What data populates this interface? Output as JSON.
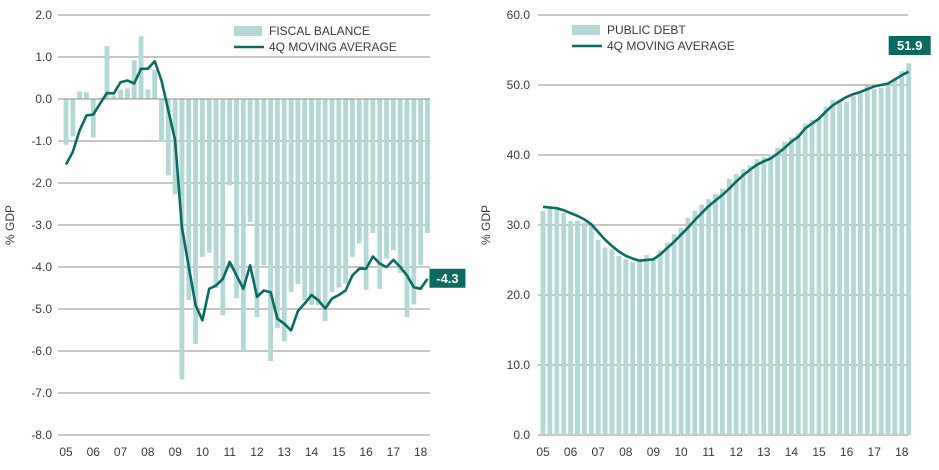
{
  "colors": {
    "bar": "#b3d8d6",
    "line": "#0a6b63",
    "label_bg": "#0a6b63",
    "grid": "#8c8c8c"
  },
  "chart_data": [
    {
      "type": "bar+line",
      "ylabel": "% GDP",
      "ylim": [
        -8,
        2
      ],
      "yticks": [
        "2.0",
        "1.0",
        "0.0",
        "-1.0",
        "-2.0",
        "-3.0",
        "-4.0",
        "-5.0",
        "-6.0",
        "-7.0",
        "-8.0"
      ],
      "ytick_values": [
        2,
        1,
        0,
        -1,
        -2,
        -3,
        -4,
        -5,
        -6,
        -7,
        -8
      ],
      "xticks": [
        "05",
        "06",
        "07",
        "08",
        "09",
        "10",
        "11",
        "12",
        "13",
        "14",
        "15",
        "16",
        "17",
        "18"
      ],
      "grid": true,
      "legend_placement": "top-right",
      "end_label": "-4.3",
      "series": [
        {
          "name": "FISCAL BALANCE",
          "kind": "bar",
          "values": [
            -1.09,
            -0.89,
            0.18,
            0.16,
            -0.92,
            0.03,
            1.26,
            0.09,
            0.22,
            0.25,
            0.92,
            1.49,
            0.23,
            0.7,
            -1.02,
            -1.82,
            -2.27,
            -6.68,
            -4.79,
            -5.83,
            -3.76,
            -3.66,
            -4.5,
            -5.15,
            -2.06,
            -4.75,
            -6.0,
            -2.93,
            -5.19,
            -3.96,
            -6.24,
            -5.45,
            -5.77,
            -4.6,
            -4.41,
            -4.79,
            -4.9,
            -4.91,
            -5.29,
            -4.6,
            -4.49,
            -4.4,
            -3.76,
            -3.44,
            -4.54,
            -3.19,
            -4.52,
            -3.8,
            -3.6,
            -4.14,
            -5.19,
            -4.89,
            -3.96,
            -3.19
          ]
        },
        {
          "name": "4Q MOVING AVERAGE",
          "kind": "line",
          "values": [
            -1.56,
            -1.26,
            -0.75,
            -0.39,
            -0.37,
            -0.11,
            0.14,
            0.13,
            0.4,
            0.44,
            0.37,
            0.72,
            0.72,
            0.9,
            0.44,
            -0.27,
            -0.98,
            -3.05,
            -4.0,
            -4.91,
            -5.27,
            -4.52,
            -4.44,
            -4.28,
            -3.88,
            -4.2,
            -4.52,
            -3.96,
            -4.71,
            -4.56,
            -4.6,
            -5.23,
            -5.35,
            -5.51,
            -5.05,
            -4.87,
            -4.67,
            -4.79,
            -4.99,
            -4.75,
            -4.67,
            -4.56,
            -4.2,
            -4.04,
            -4.04,
            -3.75,
            -3.92,
            -4.0,
            -3.83,
            -4.0,
            -4.2,
            -4.48,
            -4.52,
            -4.28
          ]
        }
      ]
    },
    {
      "type": "bar+line",
      "ylabel": "% GDP",
      "ylim": [
        0,
        60
      ],
      "yticks": [
        "60.0",
        "50.0",
        "40.0",
        "30.0",
        "20.0",
        "10.0",
        "0.0"
      ],
      "ytick_values": [
        60,
        50,
        40,
        30,
        20,
        10,
        0
      ],
      "xticks": [
        "05",
        "06",
        "07",
        "08",
        "09",
        "10",
        "11",
        "12",
        "13",
        "14",
        "15",
        "16",
        "17",
        "18"
      ],
      "grid": true,
      "legend_placement": "top-left",
      "end_label": "51.9",
      "series": [
        {
          "name": "PUBLIC DEBT",
          "kind": "bar",
          "values": [
            32.0,
            32.4,
            32.2,
            31.7,
            30.6,
            30.6,
            30.3,
            29.8,
            27.9,
            26.8,
            26.5,
            25.6,
            25.1,
            24.7,
            24.7,
            25.7,
            25.0,
            26.4,
            27.5,
            28.7,
            29.6,
            31.0,
            32.0,
            32.9,
            33.7,
            34.4,
            35.2,
            36.6,
            37.3,
            38.0,
            38.5,
            39.4,
            39.7,
            40.1,
            41.0,
            41.9,
            42.5,
            43.1,
            44.5,
            45.0,
            45.1,
            46.9,
            47.9,
            47.9,
            47.6,
            48.4,
            48.8,
            49.9,
            49.4,
            49.6,
            50.2,
            50.9,
            52.0,
            53.1
          ]
        },
        {
          "name": "4Q MOVING AVERAGE",
          "kind": "line",
          "values": [
            32.6,
            32.5,
            32.4,
            32.1,
            31.7,
            31.3,
            30.8,
            30.1,
            29.0,
            27.9,
            27.0,
            26.2,
            25.6,
            25.2,
            24.9,
            25.0,
            25.1,
            25.8,
            26.7,
            27.6,
            28.6,
            29.6,
            30.7,
            31.7,
            32.7,
            33.5,
            34.3,
            35.2,
            36.2,
            37.1,
            37.9,
            38.6,
            39.1,
            39.5,
            40.2,
            41.0,
            41.9,
            42.6,
            43.8,
            44.5,
            45.2,
            46.2,
            47.1,
            47.7,
            48.3,
            48.7,
            49.0,
            49.4,
            49.8,
            50.0,
            50.2,
            50.8,
            51.4,
            51.9
          ]
        }
      ]
    }
  ]
}
